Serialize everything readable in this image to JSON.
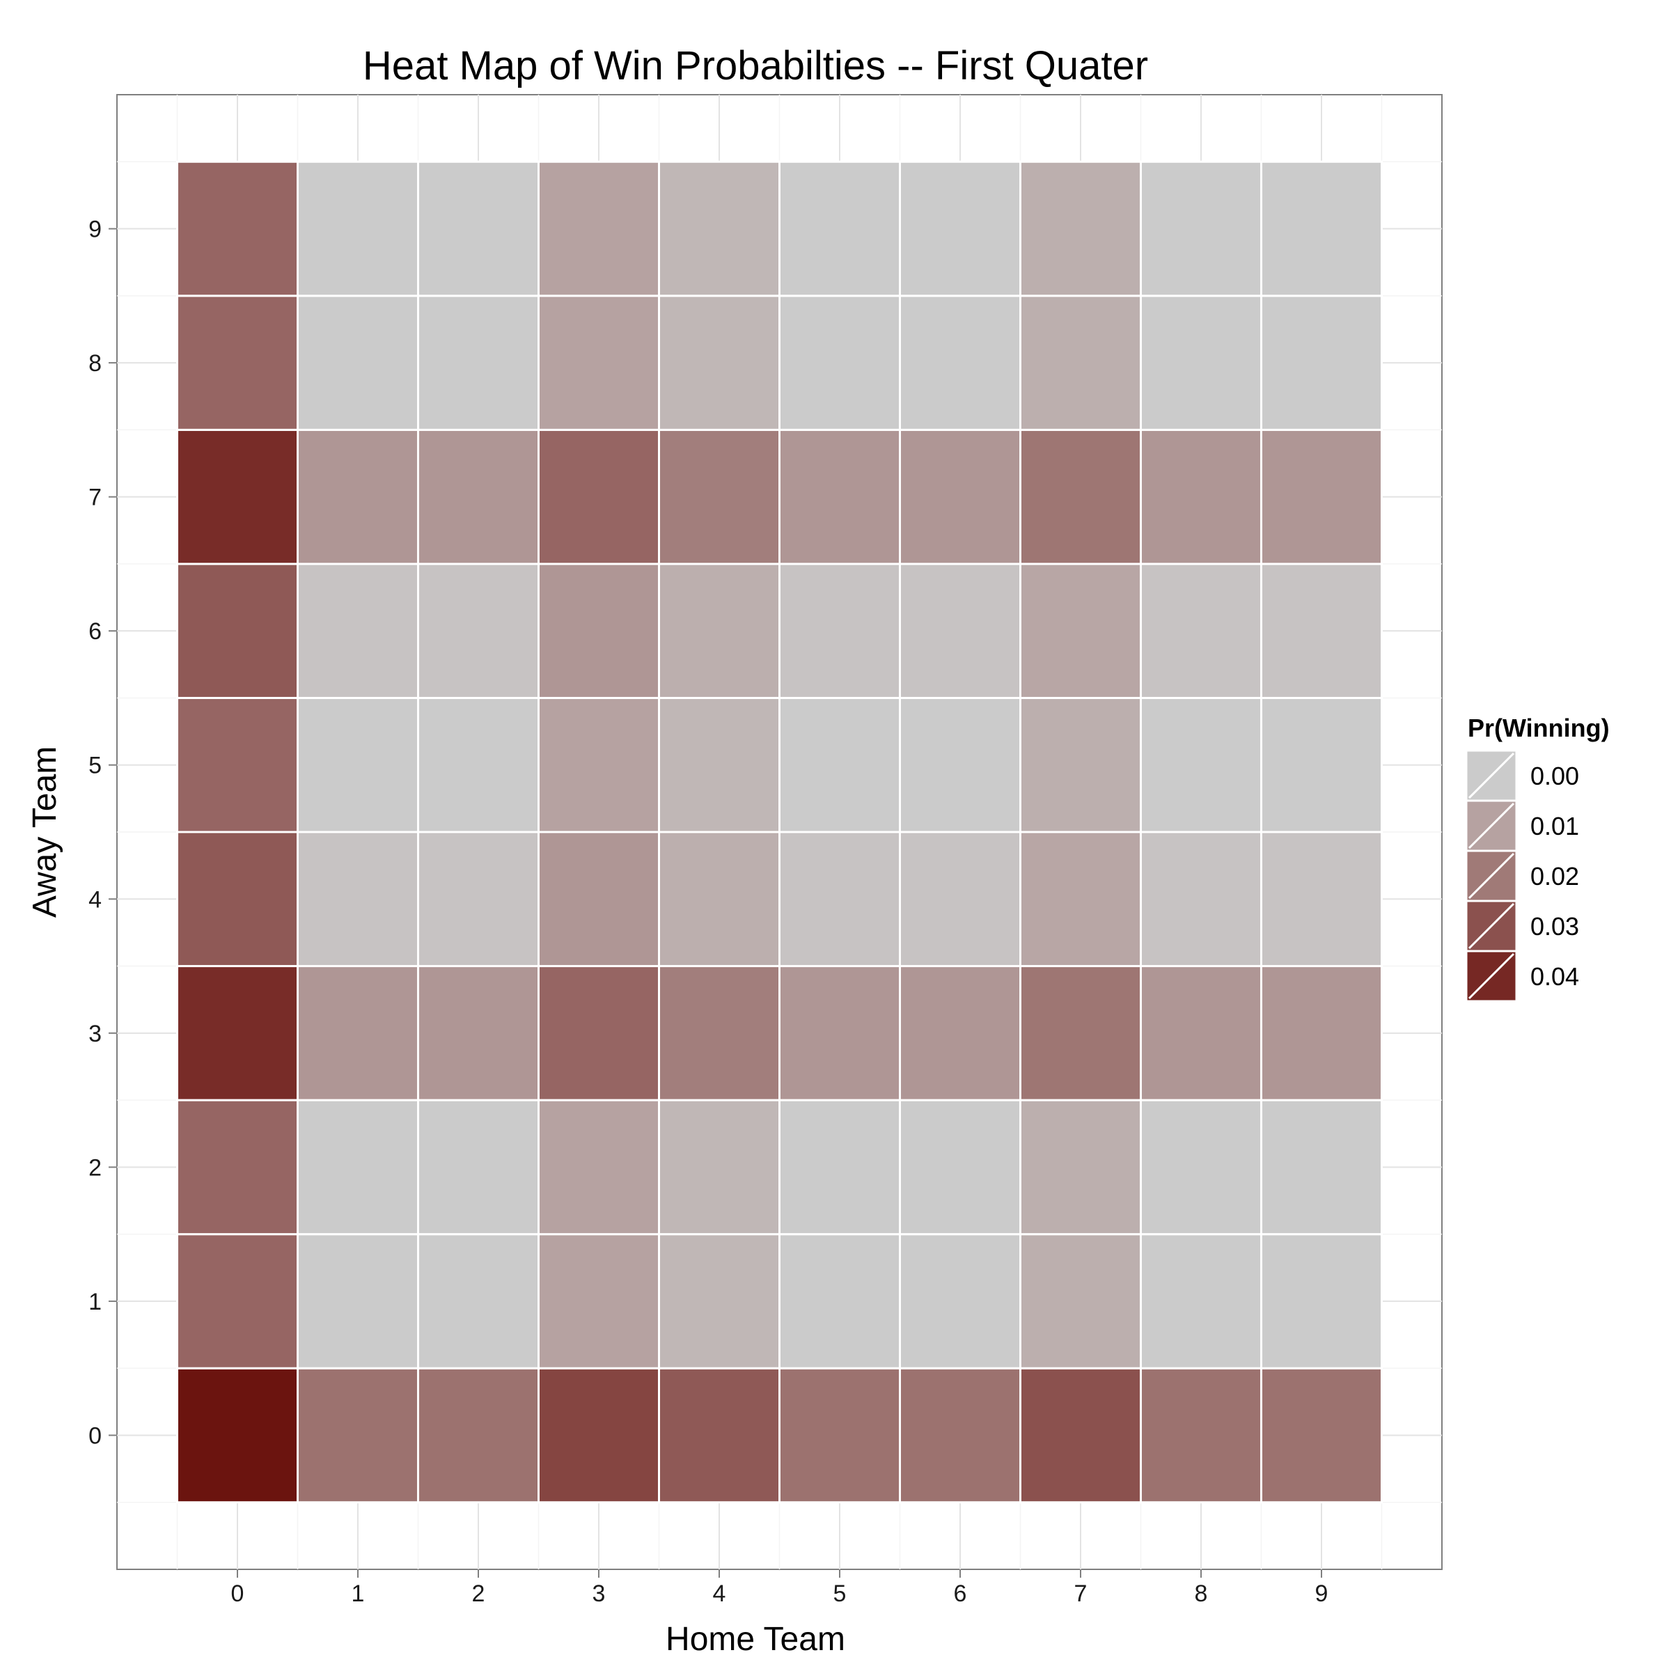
{
  "chart_data": {
    "type": "heatmap",
    "title": "Heat Map of Win Probabilties -- First Quater",
    "xlabel": "Home Team",
    "ylabel": "Away Team",
    "x": [
      "0",
      "1",
      "2",
      "3",
      "4",
      "5",
      "6",
      "7",
      "8",
      "9"
    ],
    "y": [
      "0",
      "1",
      "2",
      "3",
      "4",
      "5",
      "6",
      "7",
      "8",
      "9"
    ],
    "xlim": [
      -1,
      10
    ],
    "ylim": [
      -1,
      10
    ],
    "grid": true,
    "legend": {
      "title": "Pr(Winning)",
      "position": "right",
      "breaks": [
        0.0,
        0.01,
        0.02,
        0.03,
        0.04
      ],
      "labels": [
        "0.00",
        "0.01",
        "0.02",
        "0.03",
        "0.04"
      ]
    },
    "color_scale": {
      "low": "#cbcbcb",
      "high": "#6b140f",
      "min": 0.0,
      "max": 0.045
    },
    "values": [
      [
        0.045,
        0.022,
        0.022,
        0.033,
        0.028,
        0.022,
        0.022,
        0.03,
        0.022,
        0.022
      ],
      [
        0.025,
        0.0,
        0.0,
        0.01,
        0.005,
        0.0,
        0.0,
        0.007,
        0.0,
        0.0
      ],
      [
        0.025,
        0.0,
        0.0,
        0.01,
        0.005,
        0.0,
        0.0,
        0.007,
        0.0,
        0.0
      ],
      [
        0.039,
        0.013,
        0.013,
        0.025,
        0.019,
        0.013,
        0.013,
        0.021,
        0.013,
        0.013
      ],
      [
        0.028,
        0.002,
        0.002,
        0.013,
        0.007,
        0.002,
        0.002,
        0.009,
        0.002,
        0.002
      ],
      [
        0.025,
        0.0,
        0.0,
        0.01,
        0.005,
        0.0,
        0.0,
        0.007,
        0.0,
        0.0
      ],
      [
        0.028,
        0.002,
        0.002,
        0.013,
        0.007,
        0.002,
        0.002,
        0.009,
        0.002,
        0.002
      ],
      [
        0.039,
        0.013,
        0.013,
        0.025,
        0.019,
        0.013,
        0.013,
        0.021,
        0.013,
        0.013
      ],
      [
        0.025,
        0.0,
        0.0,
        0.01,
        0.005,
        0.0,
        0.0,
        0.007,
        0.0,
        0.0
      ],
      [
        0.025,
        0.0,
        0.0,
        0.01,
        0.005,
        0.0,
        0.0,
        0.007,
        0.0,
        0.0
      ]
    ]
  }
}
